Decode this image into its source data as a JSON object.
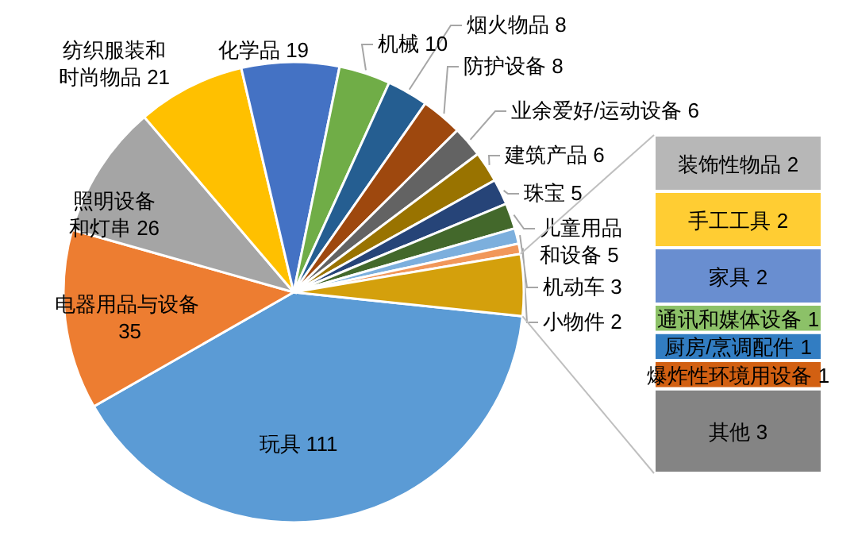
{
  "chart_data": [
    {
      "type": "pie",
      "categories": [
        "玩具",
        "电器用品与设备",
        "照明设备和灯串",
        "纺织服装和时尚物品",
        "化学品",
        "机械",
        "烟火物品",
        "防护设备",
        "业余爱好/运动设备",
        "建筑产品",
        "珠宝",
        "儿童用品和设备",
        "机动车",
        "小物件",
        null
      ],
      "values": [
        111,
        35,
        26,
        21,
        19,
        10,
        8,
        8,
        6,
        6,
        5,
        5,
        3,
        2,
        12
      ],
      "value_labels": [
        "111",
        "35",
        "26",
        "21",
        "19",
        "10",
        "8",
        "8",
        "6",
        "6",
        "5",
        "5",
        "3",
        "2",
        null
      ],
      "colors": [
        "#5b9bd5",
        "#ed7d31",
        "#a5a5a5",
        "#ffc000",
        "#4472c4",
        "#70ad47",
        "#255e91",
        "#9e480e",
        "#636363",
        "#997300",
        "#264478",
        "#43682b",
        "#7cafdd",
        "#f1975a",
        "#d4a00c"
      ]
    },
    {
      "type": "bar",
      "stacked": true,
      "categories": [
        null
      ],
      "data_labels": true,
      "series": [
        {
          "name": "其他",
          "color": "#848484",
          "values": [
            3
          ]
        },
        {
          "name": "爆炸性环境用设备",
          "color": "#d26012",
          "values": [
            1
          ]
        },
        {
          "name": "厨房/烹调配件",
          "color": "#327dc2",
          "values": [
            1
          ]
        },
        {
          "name": "通讯和媒体设备",
          "color": "#8cc168",
          "values": [
            1
          ]
        },
        {
          "name": "家具",
          "color": "#698ed0",
          "values": [
            2
          ]
        },
        {
          "name": "手工工具",
          "color": "#ffcd33",
          "values": [
            2
          ]
        },
        {
          "name": "装饰性物品",
          "color": "#b7b7b7",
          "values": [
            2
          ]
        }
      ]
    }
  ]
}
